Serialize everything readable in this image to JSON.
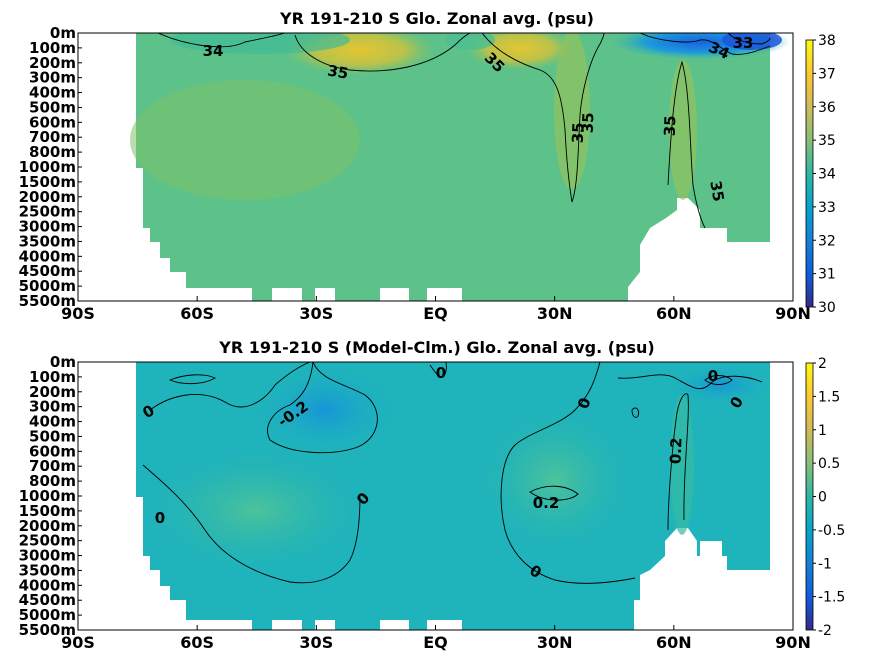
{
  "chart_data": [
    {
      "type": "heatmap",
      "title": "YR 191-210 S Glo. Zonal avg. (psu)",
      "x_tick_labels": [
        "90S",
        "60S",
        "30S",
        "EQ",
        "30N",
        "60N",
        "90N"
      ],
      "y_tick_labels": [
        "0m",
        "100m",
        "200m",
        "300m",
        "400m",
        "500m",
        "600m",
        "700m",
        "800m",
        "1000m",
        "1500m",
        "2000m",
        "2500m",
        "3000m",
        "3500m",
        "4000m",
        "4500m",
        "5000m",
        "5500m"
      ],
      "colorbar": {
        "min": 30,
        "max": 38,
        "ticks": [
          "38",
          "37",
          "36",
          "35",
          "34",
          "33",
          "32",
          "31",
          "30"
        ],
        "colormap": "parula"
      },
      "contour_labels": [
        "34",
        "35",
        "35",
        "35",
        "35",
        "35",
        "35",
        "34",
        "33"
      ],
      "colors": {
        "dominant": "#5cc28a",
        "salty": "#d9c532",
        "fresh": "#2b7fe0"
      }
    },
    {
      "type": "heatmap",
      "title": "YR 191-210 S (Model-Clm.) Glo. Zonal avg. (psu)",
      "x_tick_labels": [
        "90S",
        "60S",
        "30S",
        "EQ",
        "30N",
        "60N",
        "90N"
      ],
      "y_tick_labels": [
        "0m",
        "100m",
        "200m",
        "300m",
        "400m",
        "500m",
        "600m",
        "700m",
        "800m",
        "1000m",
        "1500m",
        "2000m",
        "2500m",
        "3000m",
        "3500m",
        "4000m",
        "4500m",
        "5000m",
        "5500m"
      ],
      "colorbar": {
        "min": -2,
        "max": 2,
        "ticks": [
          "2",
          "1.5",
          "1",
          "0.5",
          "0",
          "-0.5",
          "-1",
          "-1.5",
          "-2"
        ],
        "colormap": "parula"
      },
      "contour_labels": [
        "0",
        "-0.2",
        "0",
        "0",
        "0",
        "0",
        "0.2",
        "0",
        "0.2",
        "0",
        "0"
      ],
      "colors": {
        "dominant": "#1fb3bb",
        "positive": "#3cbf9e",
        "negative": "#189fcf"
      }
    }
  ]
}
